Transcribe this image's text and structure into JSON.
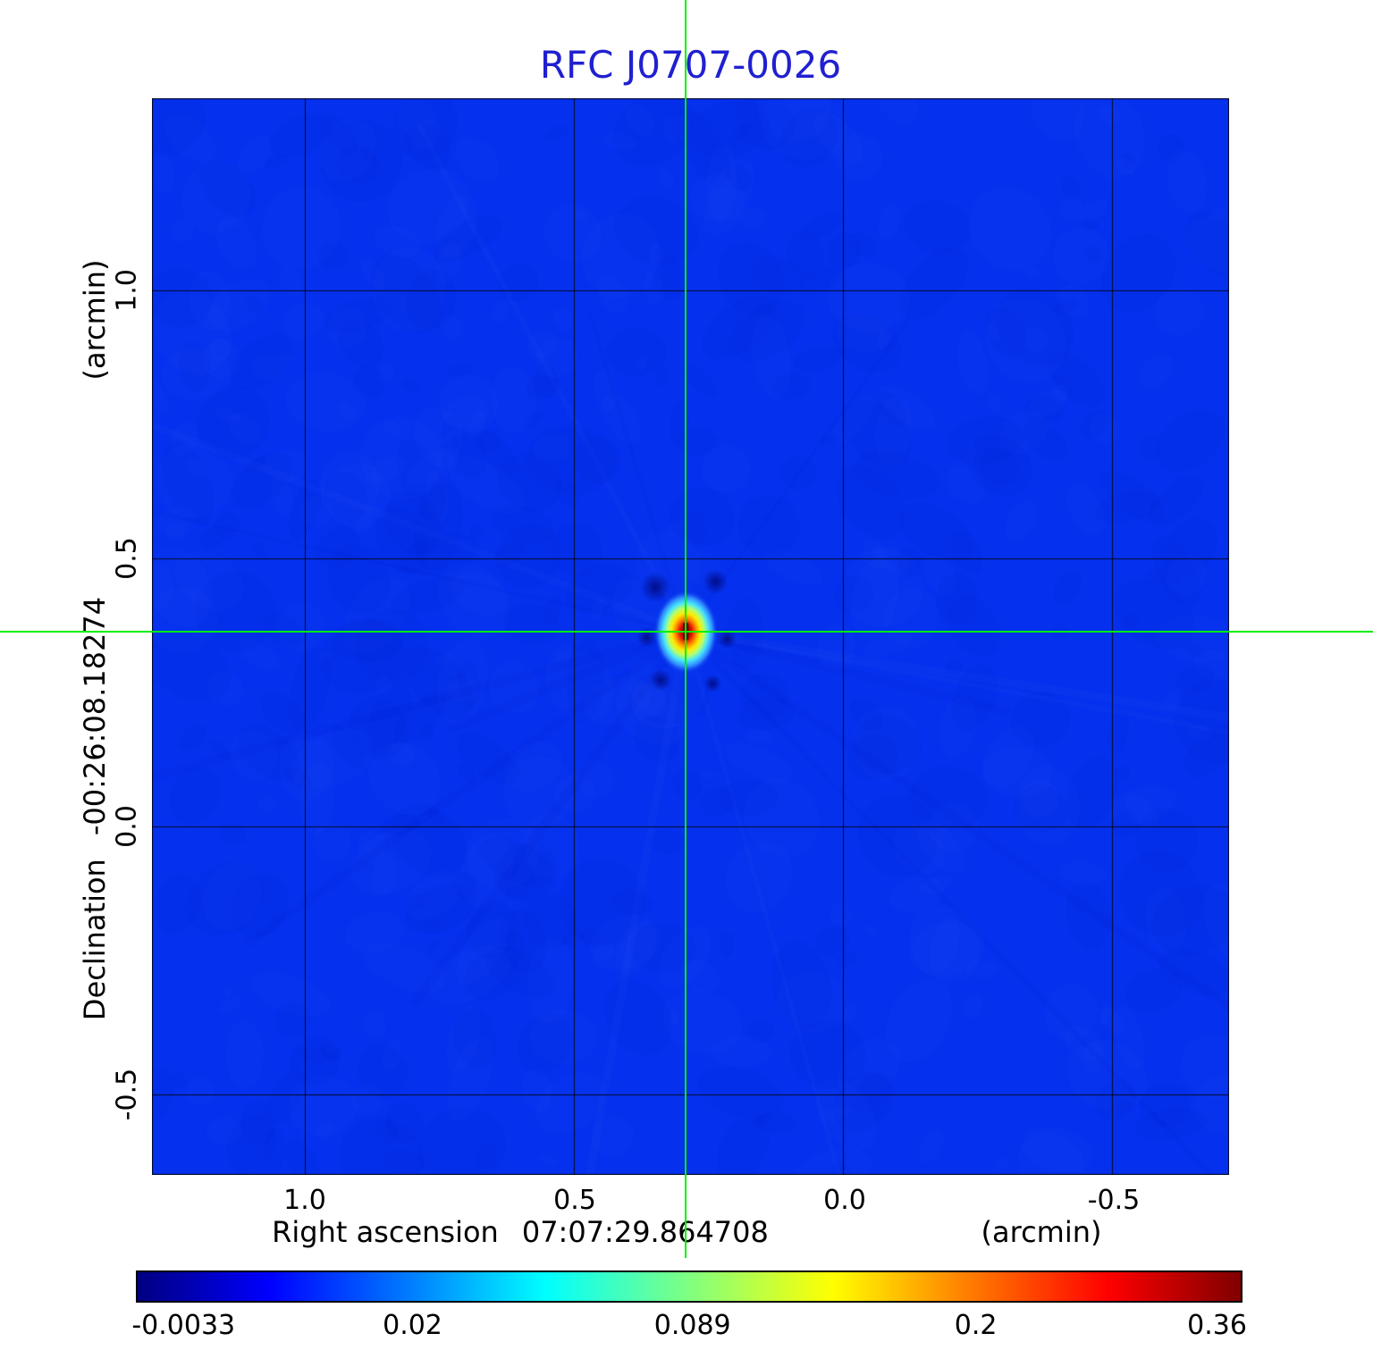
{
  "title": {
    "text": "RFC J0707-0026",
    "color": "#2020d0"
  },
  "x_axis": {
    "label": "Right ascension",
    "value": "07:07:29.864708",
    "unit": "(arcmin)",
    "ticks": [
      "1.0",
      "0.5",
      "0.0",
      "-0.5"
    ]
  },
  "y_axis": {
    "label": "Declination",
    "value": "-00:26:08.18274",
    "unit": "(arcmin)",
    "ticks": [
      "1.0",
      "0.5",
      "0.0",
      "-0.5"
    ]
  },
  "colorbar": {
    "tick_labels": [
      "-0.0033",
      "0.02",
      "0.089",
      "0.2",
      "0.36"
    ],
    "gradient": [
      "#000080 0%",
      "#0000ff 12%",
      "#0080ff 25%",
      "#00ffff 37%",
      "#80ff80 50%",
      "#ffff00 63%",
      "#ff8000 75%",
      "#ff0000 88%",
      "#800000 100%"
    ]
  },
  "colors": {
    "crosshair": "#00ee00",
    "background_sky": "#0531ee",
    "grid": "rgba(0,0,0,0.85)"
  },
  "chart_data": {
    "type": "heatmap",
    "title": "RFC J0707-0026",
    "xlabel": "Right ascension 07:07:29.864708 (arcmin)",
    "ylabel": "Declination -00:26:08.18274 (arcmin)",
    "x_ticks": [
      1.0,
      0.5,
      0.0,
      -0.5
    ],
    "y_ticks": [
      1.0,
      0.5,
      0.0,
      -0.5
    ],
    "x_range_arcmin": [
      1.2833,
      -0.7167
    ],
    "y_range_arcmin": [
      -0.65,
      1.3583
    ],
    "grid": true,
    "source": {
      "x_arcmin": 0.292,
      "y_arcmin": 0.363,
      "peak_value": 0.36,
      "shape": "compact elliptical source, slight vertical elongation, dark negative sidelobes adjacent"
    },
    "crosshair_arcmin": {
      "x": 0.292,
      "y": 0.363
    },
    "intensity_scale": {
      "min": -0.0033,
      "max": 0.36,
      "ticks": [
        -0.0033,
        0.02,
        0.089,
        0.2,
        0.36
      ],
      "colormap": "jet",
      "mapping": "quadratic (square-root spaced tick labels on evenly spaced positions)"
    },
    "background_value": 0.0,
    "legend_position": "bottom colorbar"
  }
}
